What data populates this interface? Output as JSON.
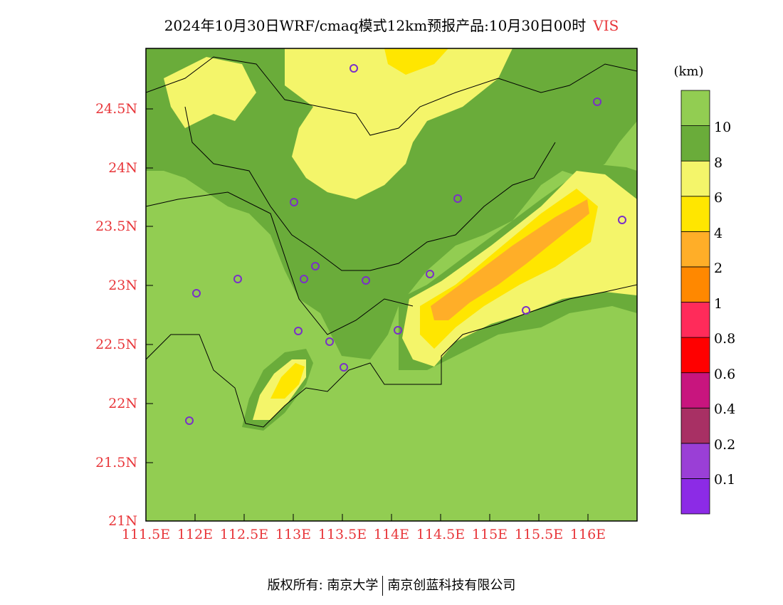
{
  "title": {
    "text": "2024年10月30日WRF/cmaq模式12km预报产品:10月30日00时",
    "variable": "VIS"
  },
  "colorbar": {
    "unit": "(km)",
    "colors": [
      "#8c2be6",
      "#9a3fd6",
      "#a83064",
      "#c8157e",
      "#ff0000",
      "#ff2b5a",
      "#ff8800",
      "#ffae28",
      "#ffe600",
      "#f4f56a",
      "#6aac3a",
      "#92cd52"
    ],
    "labels": [
      "0.1",
      "0.2",
      "0.4",
      "0.6",
      "0.8",
      "1",
      "2",
      "4",
      "6",
      "8",
      "10"
    ]
  },
  "axes": {
    "lat_labels": [
      "24.5N",
      "24N",
      "23.5N",
      "23N",
      "22.5N",
      "22N",
      "21.5N",
      "21N"
    ],
    "lon_labels": [
      "111.5E",
      "112E",
      "112.5E",
      "113E",
      "113.5E",
      "114E",
      "114.5E",
      "115E",
      "115.5E",
      "116E"
    ]
  },
  "footer": {
    "left": "版权所有: 南京大学",
    "right": "南京创蓝科技有限公司"
  }
}
